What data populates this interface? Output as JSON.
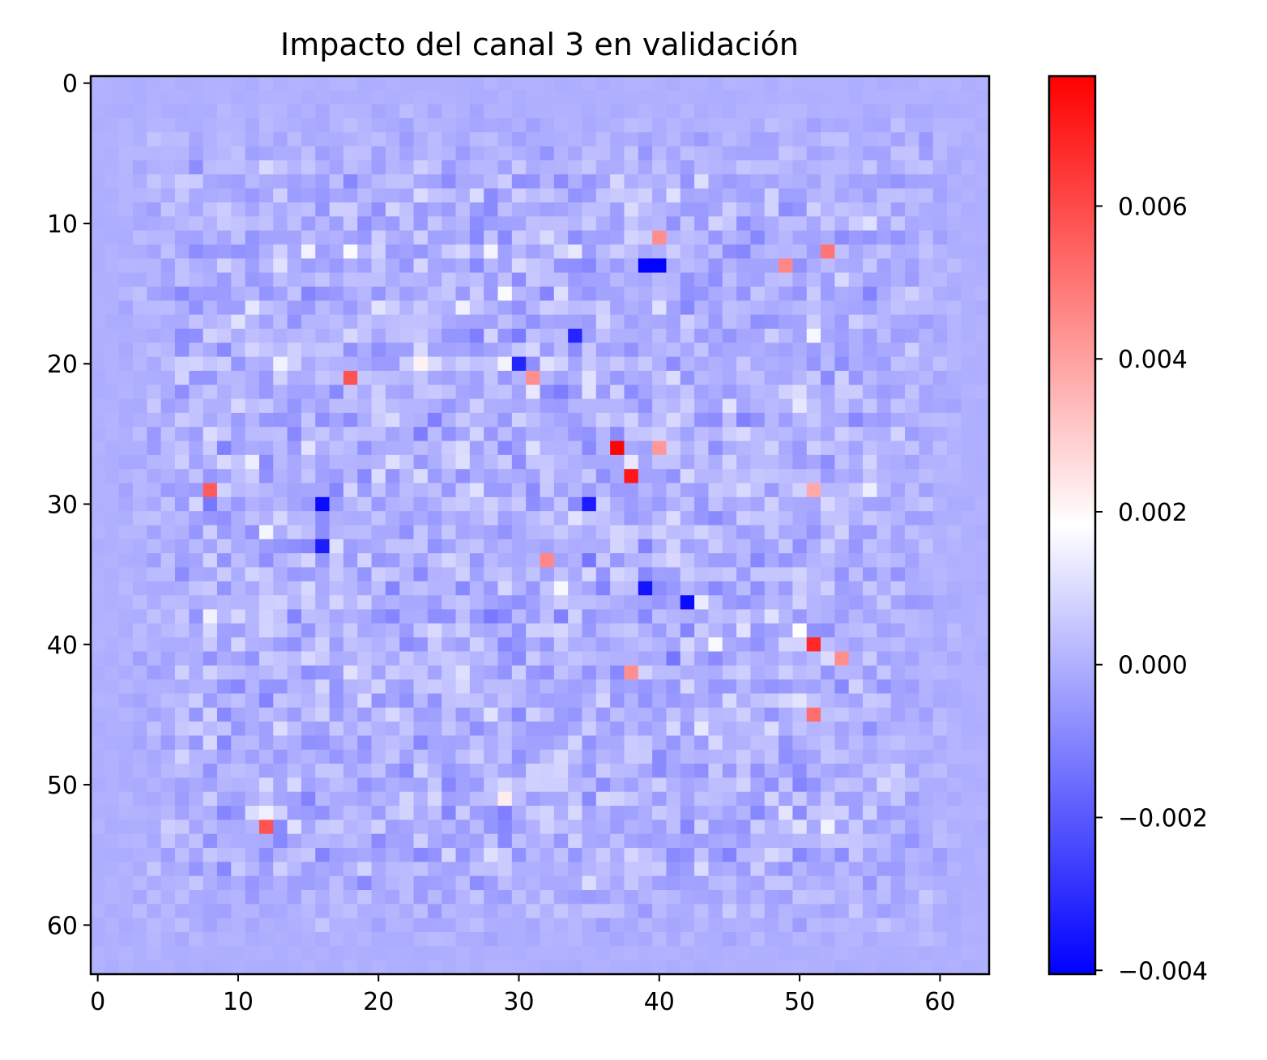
{
  "chart_data": {
    "type": "heatmap",
    "title": "Impacto del canal 3 en validación",
    "xlabel": "",
    "ylabel": "",
    "grid": false,
    "rows": 64,
    "cols": 64,
    "x_ticks": [
      "0",
      "10",
      "20",
      "30",
      "40",
      "50",
      "60"
    ],
    "x_tick_values": [
      0,
      10,
      20,
      30,
      40,
      50,
      60
    ],
    "y_ticks": [
      "0",
      "10",
      "20",
      "30",
      "40",
      "50",
      "60"
    ],
    "y_tick_values": [
      0,
      10,
      20,
      30,
      40,
      50,
      60
    ],
    "colorbar": {
      "min": -0.00405,
      "max": 0.0077,
      "ticks": [
        "−0.004",
        "−0.002",
        "0.000",
        "0.002",
        "0.004",
        "0.006"
      ],
      "tick_values": [
        -0.004,
        -0.002,
        0.0,
        0.002,
        0.004,
        0.006
      ],
      "colormap": "bwr",
      "colors": {
        "low": "#0000ff",
        "mid": "#ffffff",
        "high": "#ff0000"
      }
    },
    "background_value": 0.0,
    "notable_cells": [
      {
        "row": 26,
        "col": 37,
        "value": 0.0076
      },
      {
        "row": 28,
        "col": 38,
        "value": 0.0072
      },
      {
        "row": 40,
        "col": 51,
        "value": 0.0068
      },
      {
        "row": 21,
        "col": 18,
        "value": 0.0058
      },
      {
        "row": 29,
        "col": 8,
        "value": 0.0056
      },
      {
        "row": 53,
        "col": 12,
        "value": 0.0058
      },
      {
        "row": 45,
        "col": 51,
        "value": 0.0052
      },
      {
        "row": 12,
        "col": 52,
        "value": 0.005
      },
      {
        "row": 13,
        "col": 49,
        "value": 0.0046
      },
      {
        "row": 11,
        "col": 40,
        "value": 0.0044
      },
      {
        "row": 26,
        "col": 40,
        "value": 0.0042
      },
      {
        "row": 21,
        "col": 31,
        "value": 0.0044
      },
      {
        "row": 34,
        "col": 32,
        "value": 0.0046
      },
      {
        "row": 41,
        "col": 53,
        "value": 0.0044
      },
      {
        "row": 42,
        "col": 38,
        "value": 0.0044
      },
      {
        "row": 29,
        "col": 51,
        "value": 0.0038
      },
      {
        "row": 13,
        "col": 39,
        "value": -0.004
      },
      {
        "row": 13,
        "col": 40,
        "value": -0.004
      },
      {
        "row": 30,
        "col": 16,
        "value": -0.0038
      },
      {
        "row": 36,
        "col": 39,
        "value": -0.0036
      },
      {
        "row": 37,
        "col": 42,
        "value": -0.0038
      },
      {
        "row": 30,
        "col": 35,
        "value": -0.0034
      },
      {
        "row": 33,
        "col": 16,
        "value": -0.0034
      },
      {
        "row": 18,
        "col": 34,
        "value": -0.0032
      },
      {
        "row": 20,
        "col": 30,
        "value": -0.0032
      }
    ]
  }
}
